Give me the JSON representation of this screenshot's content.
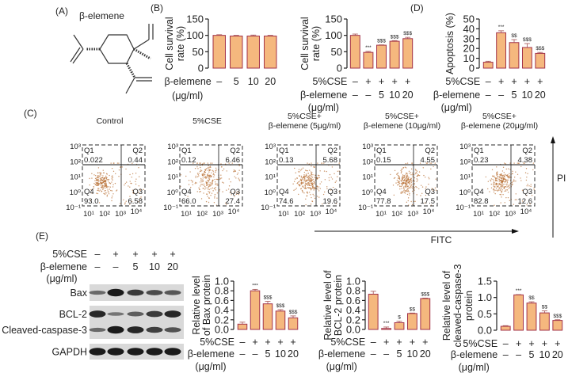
{
  "panel_labels": {
    "A": "(A)",
    "B": "(B)",
    "C": "(C)",
    "D": "(D)",
    "E": "(E)"
  },
  "molecule": {
    "name": "β-elemene"
  },
  "colors": {
    "bar_fill": "#f5b87e",
    "bar_edge": "#a3334a",
    "dots": "#b5682a",
    "axis": "#222222"
  },
  "flow": {
    "titles": [
      [
        "Control"
      ],
      [
        "5%CSE"
      ],
      [
        "5%CSE+",
        "β-elemene (5μg/ml)"
      ],
      [
        "5%CSE+",
        "β-elemene (10μg/ml)"
      ],
      [
        "5%CSE+",
        "β-elemene (20μg/ml)"
      ]
    ],
    "y_ticks": [
      "10³",
      "10²",
      "10¹",
      "10⁰",
      "10⁻¹"
    ],
    "x_ticks": [
      "10¹",
      "10²",
      "10³",
      "10⁴"
    ],
    "x_axis_label": "FITC",
    "y_axis_label": "PI",
    "plots": [
      {
        "Q1": "0.022",
        "Q2": "0.44",
        "Q3": "6.58",
        "Q4": "93.0"
      },
      {
        "Q1": "0.12",
        "Q2": "6.46",
        "Q3": "27.4",
        "Q4": "66.0"
      },
      {
        "Q1": "0.13",
        "Q2": "5.68",
        "Q3": "19.6",
        "Q4": "74.6"
      },
      {
        "Q1": "0.15",
        "Q2": "4.55",
        "Q3": "17.5",
        "Q4": "77.8"
      },
      {
        "Q1": "0.23",
        "Q2": "4.38",
        "Q3": "12.6",
        "Q4": "82.8"
      }
    ]
  },
  "western": {
    "rows": [
      {
        "label": "5%CSE",
        "values": [
          "–",
          "+",
          "+",
          "+",
          "+"
        ]
      },
      {
        "label": "β-elemene",
        "values": [
          "–",
          "–",
          "5",
          "10",
          "20"
        ]
      }
    ],
    "unit": "(μg/ml)",
    "bands": [
      {
        "label": "Bax",
        "intensity": [
          0.35,
          1.0,
          0.75,
          0.6,
          0.5
        ]
      },
      {
        "label": "BCL-2",
        "intensity": [
          0.9,
          0.25,
          0.45,
          0.75,
          0.9
        ]
      },
      {
        "label": "Cleaved-caspase-3",
        "intensity": [
          0.35,
          1.0,
          0.9,
          0.7,
          0.55
        ]
      },
      {
        "label": "GAPDH",
        "intensity": [
          1.0,
          1.0,
          1.0,
          1.0,
          1.0
        ]
      }
    ]
  },
  "chart_data": [
    {
      "id": "B-left",
      "type": "bar",
      "ylabel_lines": [
        "Cell survival",
        "rate (%)"
      ],
      "ylim": [
        0,
        150
      ],
      "yticks": [
        0,
        50,
        100,
        150
      ],
      "values": [
        100,
        98,
        98,
        98
      ],
      "errors": [
        2,
        2,
        3,
        2
      ],
      "annotations": [
        "",
        "",
        "",
        ""
      ],
      "rows": [
        {
          "label": "β-elemene",
          "values": [
            "–",
            "5",
            "10",
            "20"
          ]
        }
      ],
      "unit": "(μg/ml)"
    },
    {
      "id": "B-right",
      "type": "bar",
      "ylabel_lines": [
        "Cell survival",
        "rate (%)"
      ],
      "ylim": [
        0,
        150
      ],
      "yticks": [
        0,
        50,
        100,
        150
      ],
      "values": [
        100,
        48,
        70,
        82,
        90
      ],
      "errors": [
        4,
        3,
        1,
        2,
        4
      ],
      "annotations": [
        "",
        "***",
        "$$$",
        "$$$",
        "$$$"
      ],
      "rows": [
        {
          "label": "5%CSE",
          "values": [
            "–",
            "+",
            "+",
            "+",
            "+"
          ]
        },
        {
          "label": "β-elemene",
          "values": [
            "–",
            "–",
            "5",
            "10",
            "20"
          ]
        }
      ],
      "unit": "(μg/ml)"
    },
    {
      "id": "D",
      "type": "bar",
      "ylabel_lines": [
        "Apoptosis (%)"
      ],
      "ylim": [
        0,
        50
      ],
      "yticks": [
        0,
        10,
        20,
        30,
        40,
        50
      ],
      "values": [
        6,
        36,
        26,
        21,
        15
      ],
      "errors": [
        1,
        2,
        3,
        4,
        1
      ],
      "annotations": [
        "",
        "***",
        "$$",
        "$$$",
        "$$$"
      ],
      "rows": [
        {
          "label": "5%CSE",
          "values": [
            "–",
            "+",
            "+",
            "+",
            "+"
          ]
        },
        {
          "label": "β-elemene",
          "values": [
            "–",
            "–",
            "5",
            "10",
            "20"
          ]
        }
      ],
      "unit": "(μg/ml)"
    },
    {
      "id": "E-Bax",
      "type": "bar",
      "ylabel_lines": [
        "Relative level",
        "of Bax protein"
      ],
      "ylim": [
        0,
        1.0
      ],
      "yticks": [
        0.0,
        0.2,
        0.4,
        0.6,
        0.8,
        1.0
      ],
      "values": [
        0.11,
        0.8,
        0.53,
        0.38,
        0.24
      ],
      "errors": [
        0.04,
        0.03,
        0.05,
        0.03,
        0.04
      ],
      "annotations": [
        "",
        "***",
        "$$$",
        "$$$",
        "$$$"
      ],
      "rows": [
        {
          "label": "5%CSE",
          "values": [
            "–",
            "+",
            "+",
            "+",
            "+"
          ]
        },
        {
          "label": "β-elemene",
          "values": [
            "–",
            "–",
            "5",
            "10",
            "20"
          ]
        }
      ],
      "unit": "(μg/ml)"
    },
    {
      "id": "E-BCL2",
      "type": "bar",
      "ylabel_lines": [
        "Relative level of",
        "BCL-2 protein"
      ],
      "ylim": [
        0,
        1.0
      ],
      "yticks": [
        0.0,
        0.2,
        0.4,
        0.6,
        0.8,
        1.0
      ],
      "values": [
        0.73,
        0.02,
        0.14,
        0.33,
        0.64
      ],
      "errors": [
        0.06,
        0.03,
        0.03,
        0.01,
        0.01
      ],
      "annotations": [
        "",
        "***",
        "$",
        "$$",
        "$$$"
      ],
      "rows": [
        {
          "label": "5%CSE",
          "values": [
            "–",
            "+",
            "+",
            "+",
            "+"
          ]
        },
        {
          "label": "β-elemene",
          "values": [
            "–",
            "–",
            "5",
            "10",
            "20"
          ]
        }
      ],
      "unit": "(μg/ml)"
    },
    {
      "id": "E-Casp3",
      "type": "bar",
      "ylabel_lines": [
        "Relative level of",
        "cleaved-caspase-3",
        "protein"
      ],
      "ylim": [
        0,
        1.5
      ],
      "yticks": [
        0.0,
        0.5,
        1.0,
        1.5
      ],
      "values": [
        0.12,
        1.08,
        0.83,
        0.53,
        0.3
      ],
      "errors": [
        0.02,
        0.01,
        0.04,
        0.06,
        0.02
      ],
      "annotations": [
        "",
        "***",
        "$$",
        "$$",
        "$$$"
      ],
      "rows": [
        {
          "label": "5%CSE",
          "values": [
            "–",
            "+",
            "+",
            "+",
            "+"
          ]
        },
        {
          "label": "β-elemene",
          "values": [
            "–",
            "–",
            "5",
            "10",
            "20"
          ]
        }
      ],
      "unit": "(μg/ml)"
    }
  ]
}
